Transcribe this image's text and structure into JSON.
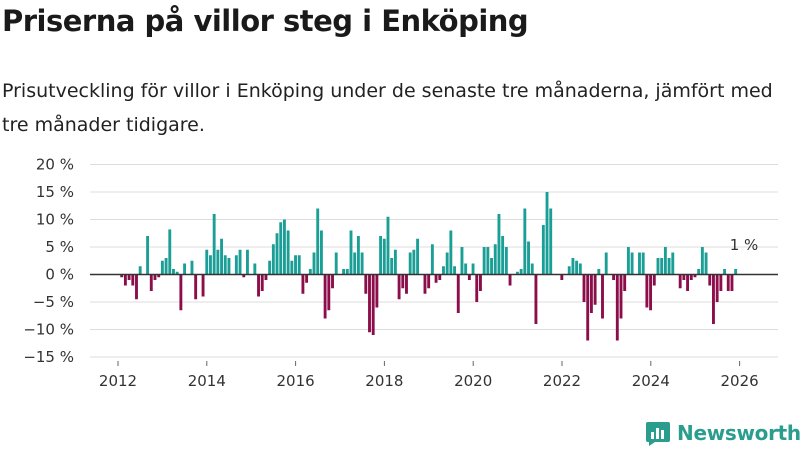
{
  "title": "Priserna på villor steg i Enköping",
  "subtitle": "Prisutveckling för villor i Enköping under de senaste tre månaderna, jämfört med tre månader tidigare.",
  "brand": "Newsworthy",
  "colors": {
    "positive": "#1a9e96",
    "negative": "#8b0d4a",
    "zero_line": "#333333",
    "grid": "#dddddd",
    "brand": "#2a9d8f"
  },
  "chart_data": {
    "type": "bar",
    "title": "Priserna på villor steg i Enköping",
    "xlabel": "",
    "ylabel": "",
    "ylim": [
      -15,
      20
    ],
    "yticks": [
      -15,
      -10,
      -5,
      0,
      5,
      10,
      15,
      20
    ],
    "ytick_labels": [
      "−15 %",
      "−10 %",
      "−5 %",
      "0 %",
      "5 %",
      "10 %",
      "15 %",
      "20 %"
    ],
    "xlim": [
      2011.0,
      2026.9
    ],
    "xticks": [
      2012,
      2014,
      2016,
      2018,
      2020,
      2022,
      2024,
      2026
    ],
    "xtick_labels": [
      "2012",
      "2014",
      "2016",
      "2018",
      "2020",
      "2022",
      "2024",
      "2026"
    ],
    "start": 2012.0,
    "step": 0.0833,
    "annotation": {
      "text": "1 %",
      "x": 2025.92,
      "y": 1
    },
    "values": [
      0,
      -0.5,
      -2,
      -1,
      -2,
      -4.5,
      1.5,
      0,
      7,
      -3,
      -1,
      -0.5,
      2.5,
      3,
      8.2,
      1,
      0.5,
      -6.5,
      2,
      0,
      2.5,
      -4.5,
      0,
      -4,
      4.5,
      3.5,
      11,
      4.5,
      6.5,
      3.5,
      3,
      0,
      3.5,
      4.5,
      -0.5,
      4.5,
      0,
      2,
      -4,
      -3,
      -1,
      2.5,
      5.5,
      7.5,
      9.5,
      10,
      8,
      2.5,
      3.5,
      3.5,
      -3.5,
      -1.5,
      1,
      4,
      12,
      8,
      -8,
      -6.5,
      -2.5,
      4,
      0,
      1,
      1,
      8,
      4,
      7,
      4,
      -3.5,
      -10.5,
      -11,
      -6,
      7,
      6.5,
      10.5,
      3,
      4.5,
      -4.5,
      -2.5,
      -3.5,
      4,
      4.5,
      6.5,
      0,
      -3.5,
      -2.5,
      5.5,
      -1.5,
      -1,
      1.5,
      4,
      8,
      1.5,
      -7,
      5,
      2,
      -1,
      2,
      -5,
      -3,
      5,
      5,
      3,
      5.5,
      11,
      7,
      5,
      -2,
      0,
      0.5,
      1,
      12,
      6,
      2,
      -9,
      0,
      9,
      15,
      12,
      0,
      0,
      -1,
      0,
      1.5,
      3,
      2.5,
      2,
      -5,
      -12,
      -7,
      -5.5,
      1,
      -8,
      4,
      0,
      -1,
      -12,
      -8,
      -3,
      5,
      4,
      0,
      4,
      4,
      -6,
      -6.5,
      -2,
      3,
      3,
      5,
      3,
      4,
      0,
      -2.5,
      -1,
      -3,
      -1,
      -0.5,
      1,
      5,
      4,
      -2,
      -9,
      -5,
      -3,
      1,
      -3,
      -3,
      1
    ]
  }
}
